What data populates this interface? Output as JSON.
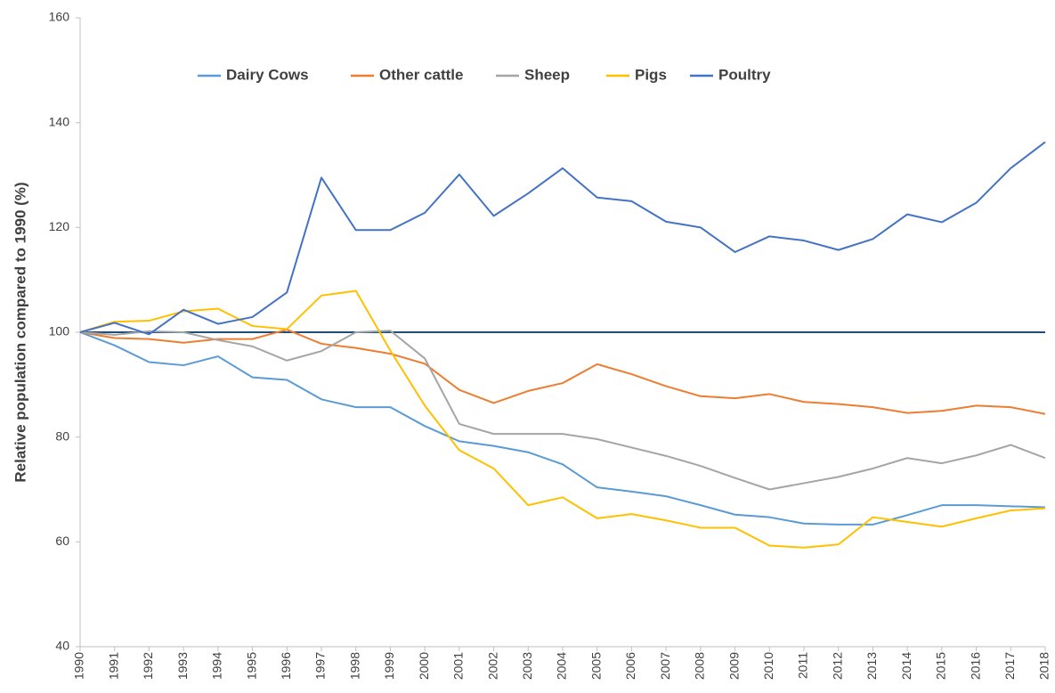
{
  "chart_data": {
    "type": "line",
    "y_label": "Relative population compared to 1990 (%)",
    "categories": [
      "1990",
      "1991",
      "1992",
      "1993",
      "1994",
      "1995",
      "1996",
      "1997",
      "1998",
      "1999",
      "2000",
      "2001",
      "2002",
      "2003",
      "2004",
      "2005",
      "2006",
      "2007",
      "2008",
      "2009",
      "2010",
      "2011",
      "2012",
      "2013",
      "2014",
      "2015",
      "2016",
      "2017",
      "2018"
    ],
    "series": [
      {
        "name": "Dairy Cows",
        "color": "#5b9bd5",
        "values": [
          100,
          97.5,
          94.3,
          93.7,
          95.4,
          91.4,
          90.9,
          87.2,
          85.7,
          85.7,
          82.1,
          79.2,
          78.3,
          77.1,
          74.8,
          70.4,
          69.6,
          68.7,
          67.0,
          65.2,
          64.7,
          63.5,
          63.3,
          63.3,
          65.1,
          67.0,
          67.0,
          66.8,
          66.6
        ]
      },
      {
        "name": "Other cattle",
        "color": "#ed7d31",
        "values": [
          100,
          98.9,
          98.7,
          98.0,
          98.7,
          98.7,
          100.5,
          97.8,
          97.0,
          95.9,
          94.0,
          89.0,
          86.5,
          88.8,
          90.3,
          93.9,
          92.0,
          89.7,
          87.8,
          87.4,
          88.2,
          86.7,
          86.3,
          85.7,
          84.6,
          85.0,
          86.0,
          85.7,
          84.4
        ]
      },
      {
        "name": "Sheep",
        "color": "#a5a5a5",
        "values": [
          100,
          99.5,
          100.2,
          100.0,
          98.5,
          97.3,
          94.6,
          96.4,
          100.0,
          100.3,
          95.0,
          82.5,
          80.6,
          80.6,
          80.6,
          79.6,
          78.0,
          76.4,
          74.5,
          72.2,
          70.0,
          71.2,
          72.4,
          74.0,
          76.0,
          75.0,
          76.5,
          78.5,
          76.0
        ]
      },
      {
        "name": "Pigs",
        "color": "#ffc000",
        "values": [
          100,
          102.0,
          102.2,
          104.0,
          104.5,
          101.2,
          100.6,
          107.0,
          107.9,
          96.5,
          86.0,
          77.5,
          74.0,
          67.0,
          68.5,
          64.5,
          65.3,
          64.1,
          62.7,
          62.7,
          59.3,
          58.9,
          59.5,
          64.7,
          63.8,
          62.9,
          64.5,
          66.0,
          66.4
        ]
      },
      {
        "name": "Poultry",
        "color": "#4472c4",
        "values": [
          100,
          101.8,
          99.6,
          104.3,
          101.6,
          102.9,
          107.6,
          129.5,
          119.5,
          119.5,
          122.8,
          130.1,
          122.2,
          126.5,
          131.3,
          125.7,
          125.0,
          121.1,
          120.0,
          115.3,
          118.3,
          117.5,
          115.7,
          117.8,
          122.5,
          121.0,
          124.7,
          131.3,
          136.3
        ]
      }
    ],
    "reference_line": {
      "value": 100,
      "color": "#1f4e79"
    },
    "ylim": [
      40,
      160
    ],
    "yticks": [
      40,
      60,
      80,
      100,
      120,
      140,
      160
    ],
    "legend": "top"
  }
}
